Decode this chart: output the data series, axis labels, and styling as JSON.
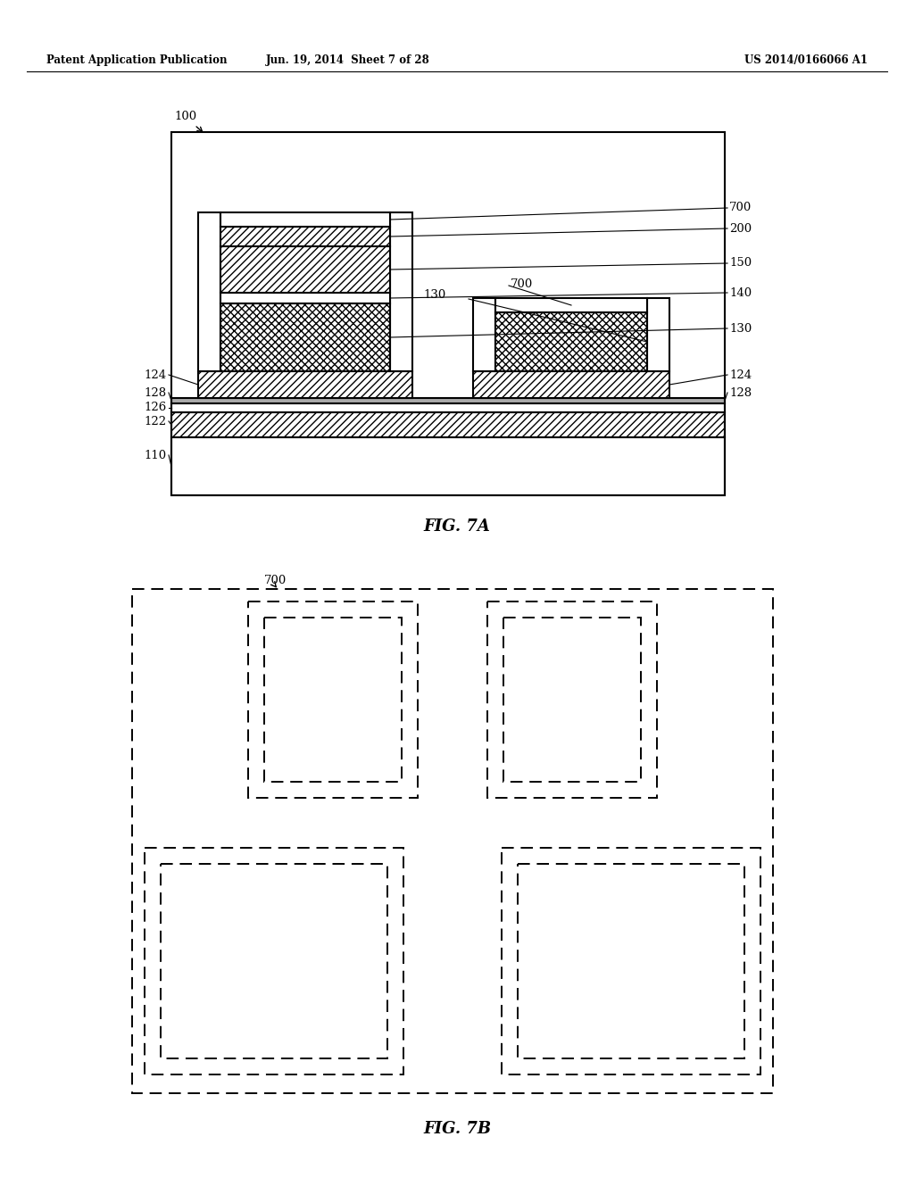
{
  "header_left": "Patent Application Publication",
  "header_center": "Jun. 19, 2014  Sheet 7 of 28",
  "header_right": "US 2014/0166066 A1",
  "fig7a_label": "FIG. 7A",
  "fig7b_label": "FIG. 7B",
  "bg_color": "#ffffff",
  "line_color": "#000000"
}
